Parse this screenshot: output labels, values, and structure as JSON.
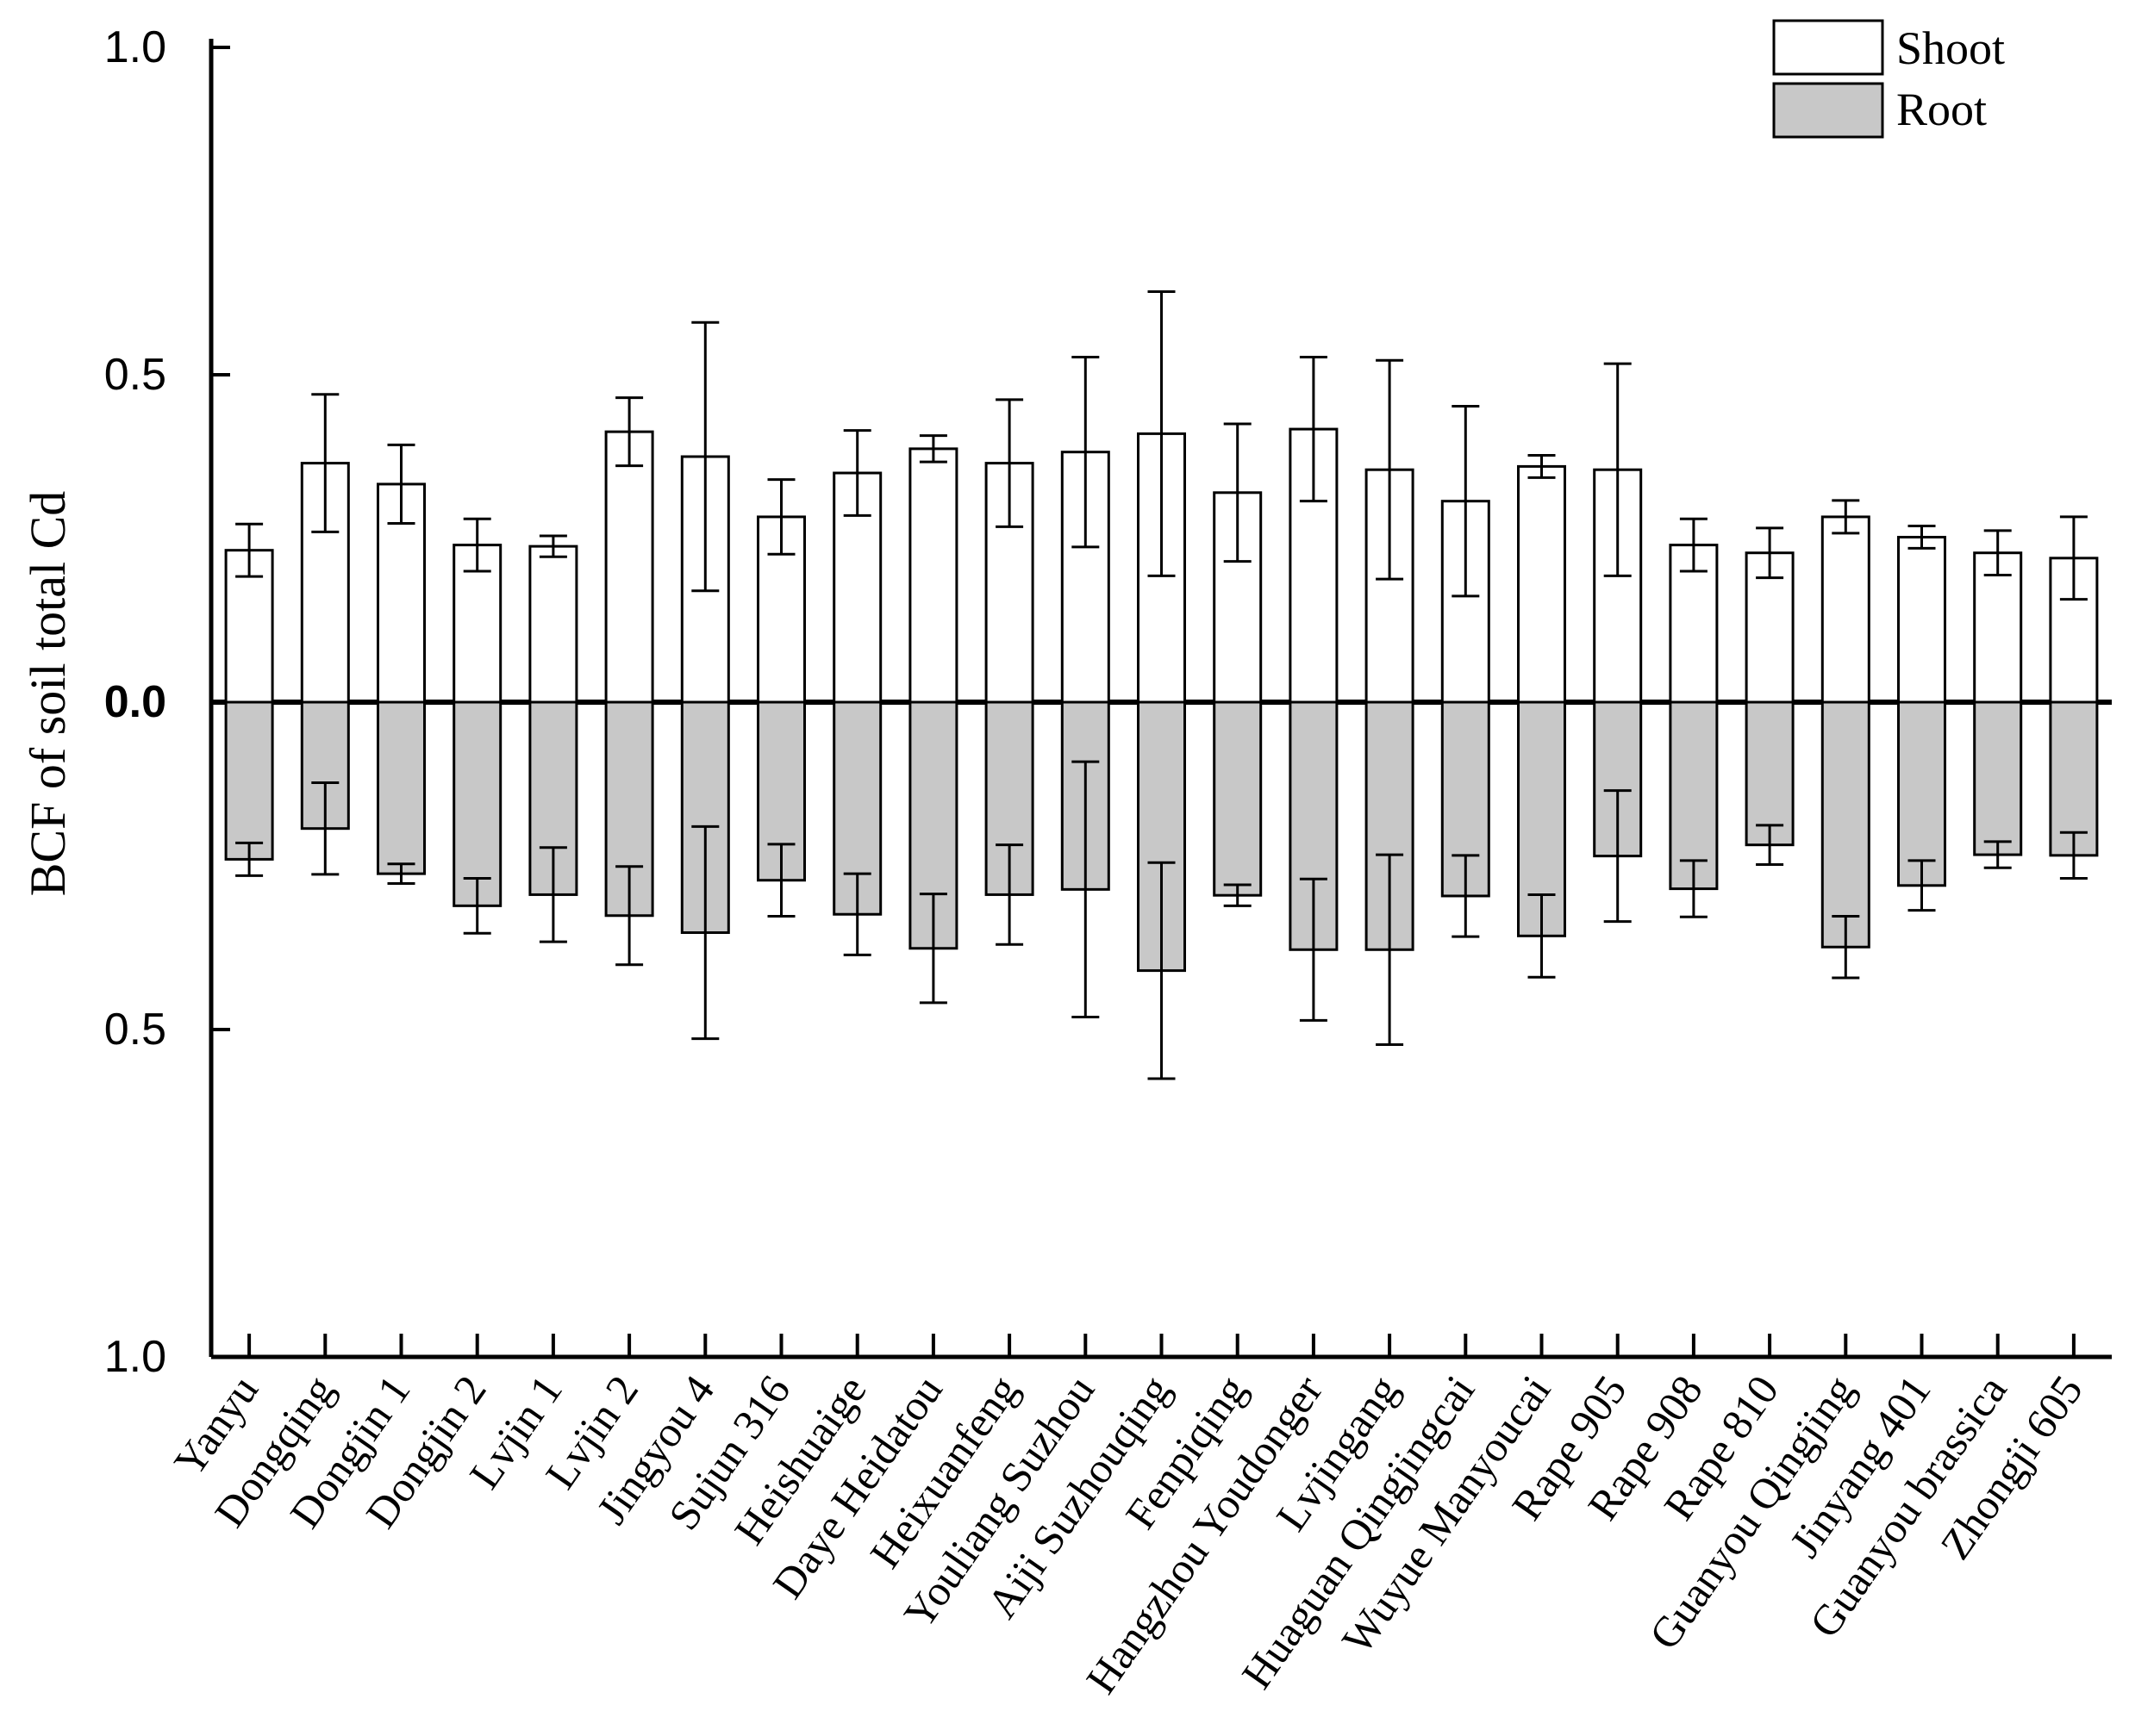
{
  "chart_data": {
    "type": "bar",
    "layout": "diverging",
    "ylabel": "BCF of soil total Cd",
    "ylim": [
      -1.0,
      1.0
    ],
    "yticks": [
      {
        "value": 1.0,
        "label": "1.0"
      },
      {
        "value": 0.5,
        "label": "0.5"
      },
      {
        "value": 0.0,
        "label": "0.0"
      },
      {
        "value": -0.5,
        "label": "0.5"
      },
      {
        "value": -1.0,
        "label": "1.0"
      }
    ],
    "categories": [
      "Yanyu",
      "Dongqing",
      "Dongjin 1",
      "Dongjin 2",
      "Lvjin 1",
      "Lvjin 2",
      "Jingyou 4",
      "Sujun 316",
      "Heishuaige",
      "Daye Heidatou",
      "Heixuanfeng",
      "Youliang Suzhou",
      "Aiji Suzhouqing",
      "Fenpiqing",
      "Hangzhou Youdonger",
      "Lvjingang",
      "Huaguan Qingjingcai",
      "Wuyue Manyoucai",
      "Rape 905",
      "Rape 908",
      "Rape 810",
      "Guanyou Qingjing",
      "Jinyang 401",
      "Guanyou brassica",
      "Zhongji 605"
    ],
    "series": [
      {
        "name": "Shoot",
        "color": "#ffffff",
        "values": [
          0.232,
          0.365,
          0.333,
          0.24,
          0.238,
          0.413,
          0.375,
          0.283,
          0.35,
          0.387,
          0.365,
          0.382,
          0.41,
          0.32,
          0.417,
          0.355,
          0.307,
          0.36,
          0.355,
          0.24,
          0.228,
          0.283,
          0.252,
          0.228,
          0.22
        ],
        "errors": [
          0.04,
          0.105,
          0.06,
          0.04,
          0.016,
          0.052,
          0.205,
          0.057,
          0.065,
          0.02,
          0.097,
          0.145,
          0.217,
          0.105,
          0.11,
          0.167,
          0.145,
          0.017,
          0.162,
          0.04,
          0.038,
          0.025,
          0.017,
          0.034,
          0.063
        ]
      },
      {
        "name": "Root",
        "color": "#c8c8c8",
        "values": [
          -0.24,
          -0.193,
          -0.262,
          -0.311,
          -0.294,
          -0.326,
          -0.352,
          -0.272,
          -0.324,
          -0.376,
          -0.294,
          -0.286,
          -0.41,
          -0.295,
          -0.378,
          -0.378,
          -0.296,
          -0.357,
          -0.235,
          -0.285,
          -0.218,
          -0.374,
          -0.28,
          -0.233,
          -0.234
        ],
        "errors": [
          0.025,
          0.07,
          0.015,
          0.042,
          0.072,
          0.075,
          0.162,
          0.055,
          0.062,
          0.083,
          0.076,
          0.195,
          0.165,
          0.016,
          0.108,
          0.145,
          0.062,
          0.063,
          0.1,
          0.043,
          0.03,
          0.047,
          0.038,
          0.02,
          0.035
        ]
      }
    ],
    "legend": {
      "position": "top-right",
      "entries": [
        "Shoot",
        "Root"
      ]
    }
  }
}
